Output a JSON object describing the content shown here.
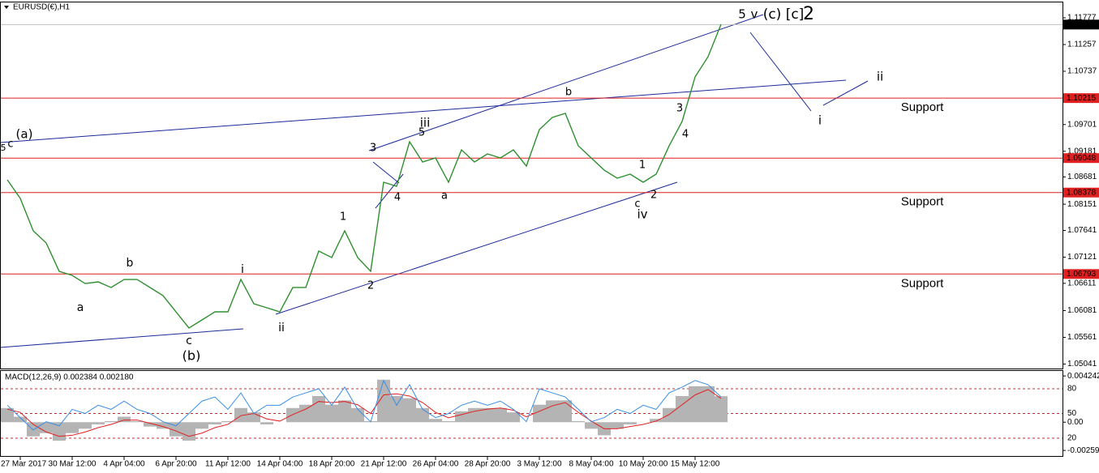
{
  "chart_data": [
    {
      "type": "line",
      "title": "EURUSD(€),H1",
      "categories": [
        null,
        "27 Mar 2017",
        null,
        null,
        null,
        "30 Mar 12:00",
        null,
        null,
        null,
        "4 Apr 04:00",
        null,
        null,
        null,
        "6 Apr 20:00",
        null,
        null,
        null,
        "11 Apr 12:00",
        null,
        null,
        null,
        "14 Apr 04:00",
        null,
        null,
        null,
        "18 Apr 20:00",
        null,
        null,
        null,
        "21 Apr 12:00",
        null,
        null,
        null,
        "26 Apr 04:00",
        null,
        null,
        null,
        "28 Apr 20:00",
        null,
        null,
        null,
        "3 May 12:00",
        null,
        null,
        null,
        "8 May 04:00",
        null,
        null,
        null,
        "10 May 20:00",
        null,
        null,
        null,
        "15 May 12:00",
        null,
        null
      ],
      "series": [
        {
          "color": "#2f8f2f",
          "values": [
            1.08625,
            1.08263,
            1.07633,
            1.07396,
            1.06845,
            1.06766,
            1.06608,
            1.0664,
            1.0653,
            1.06687,
            1.06687,
            1.0653,
            1.06372,
            1.06057,
            1.05742,
            1.05899,
            1.06057,
            1.06057,
            1.06687,
            1.06214,
            1.06136,
            1.06057,
            1.0653,
            1.0653,
            1.07239,
            1.07113,
            1.07633,
            1.07113,
            1.06845,
            1.08578,
            1.08499,
            1.09366,
            1.08972,
            1.09051,
            1.08578,
            1.09208,
            1.08972,
            1.0913,
            1.09051,
            1.09208,
            1.08893,
            1.09602,
            1.09839,
            1.09918,
            1.09287,
            1.09051,
            1.08814,
            1.08657,
            1.08736,
            1.08578,
            1.08736,
            1.09287,
            1.0976,
            1.10627,
            1.11021,
            1.11651
          ]
        }
      ],
      "ylim": [
        1.04954,
        1.12045
      ],
      "yticks": [
        1.11777,
        1.11257,
        1.10737,
        1.09701,
        1.09181,
        1.08681,
        1.08151,
        1.07641,
        1.07121,
        1.06611,
        1.06081,
        1.05561,
        1.05041
      ],
      "current_price": 1.11646,
      "hlines": [
        {
          "value": 1.10215,
          "label": "Support"
        },
        {
          "value": 1.09048
        },
        {
          "value": 1.08378,
          "label": "Support"
        },
        {
          "value": 1.06793,
          "label": "Support"
        }
      ],
      "hline_color": "#e02020",
      "annotations": [
        {
          "text": "(a)",
          "color": "#a0522d"
        },
        {
          "text": "c",
          "color": "#b0208c"
        },
        {
          "text": "5",
          "color": "#2e8b2e"
        },
        {
          "text": "a",
          "color": "#b0208c"
        },
        {
          "text": "b",
          "color": "#b0208c"
        },
        {
          "text": "c",
          "color": "#b0208c"
        },
        {
          "text": "(b)",
          "color": "#a0522d"
        },
        {
          "text": "i",
          "color": "#b0208c"
        },
        {
          "text": "ii",
          "color": "#b0208c"
        },
        {
          "text": "1",
          "color": "#2e8b2e"
        },
        {
          "text": "2",
          "color": "#2e8b2e"
        },
        {
          "text": "3",
          "color": "#2e8b2e"
        },
        {
          "text": "4",
          "color": "#2e8b2e"
        },
        {
          "text": "5",
          "color": "#2e8b2e"
        },
        {
          "text": "iii",
          "color": "#b0208c"
        },
        {
          "text": "a",
          "color": "#2e8b2e"
        },
        {
          "text": "b",
          "color": "#2e8b2e"
        },
        {
          "text": "c",
          "color": "#2e8b2e"
        },
        {
          "text": "iv",
          "color": "#b0208c"
        },
        {
          "text": "1",
          "color": "#2e8b2e"
        },
        {
          "text": "2",
          "color": "#2e8b2e"
        },
        {
          "text": "3",
          "color": "#2e8b2e"
        },
        {
          "text": "4",
          "color": "#2e8b2e"
        },
        {
          "text": "5",
          "color": "#2e8b2e"
        },
        {
          "text": "v",
          "color": "#b0208c"
        },
        {
          "text": "(c)",
          "color": "#a0522d"
        },
        {
          "text": "[c]",
          "color": "#2e8b2e"
        },
        {
          "text": "2",
          "color": "#1f3fb0"
        },
        {
          "text": "i",
          "color": "#b0208c"
        },
        {
          "text": "ii",
          "color": "#b0208c"
        }
      ]
    },
    {
      "type": "macd",
      "title": "MACD(12,26,9) 0.002384 0.002180",
      "series": [
        {
          "color": "#b4b4b4",
          "values": [
            0.0013,
            0.0005,
            -0.0013,
            -0.001,
            -0.0017,
            -0.001,
            -0.0006,
            -0.0002,
            0.0001,
            0.0005,
            0.0001,
            -0.0004,
            -0.0006,
            -0.0013,
            -0.0017,
            -0.0006,
            -0.0002,
            0.0001,
            0.0013,
            0.0009,
            -0.0002,
            0,
            0.0013,
            0.0016,
            0.0024,
            0.0016,
            0.002,
            0.0013,
            0.0001,
            0.0039,
            0.0024,
            0.0022,
            0.0013,
            0.0003,
            0.0001,
            0.001,
            0.0013,
            0.0013,
            0.0013,
            0.0009,
            0,
            0.0016,
            0.002,
            0.002,
            0.0001,
            -0.0006,
            -0.0012,
            -0.0006,
            -0.0002,
            0,
            0.0003,
            0.0013,
            0.0024,
            0.0033,
            0.0033,
            0.002384
          ]
        },
        {
          "color": "#e02020",
          "values": [
            0.0012,
            0.0009,
            -0.0002,
            -0.0009,
            -0.0013,
            -0.0012,
            -0.0009,
            -0.0005,
            -0.0002,
            0.0002,
            0.0002,
            -0.0001,
            -0.0004,
            -0.0008,
            -0.0013,
            -0.001,
            -0.0005,
            -0.0002,
            0.0006,
            0.0008,
            0.0003,
            0.0001,
            0.0007,
            0.0012,
            0.0019,
            0.0018,
            0.0019,
            0.0016,
            0.0008,
            0.0025,
            0.0026,
            0.0024,
            0.0018,
            0.0009,
            0.0004,
            0.0007,
            0.001,
            0.0012,
            0.0013,
            0.0011,
            0.0005,
            0.001,
            0.0015,
            0.0018,
            0.0009,
            0.0001,
            -0.0006,
            -0.0006,
            -0.0004,
            -0.0002,
            0.0001,
            0.0007,
            0.0016,
            0.0025,
            0.003,
            0.00218
          ]
        },
        {
          "color": "#3a8ee6",
          "axis": "y2",
          "values": [
            60,
            45,
            30,
            40,
            35,
            55,
            50,
            60,
            55,
            65,
            55,
            50,
            40,
            35,
            50,
            65,
            70,
            55,
            75,
            50,
            60,
            60,
            70,
            75,
            80,
            60,
            82,
            55,
            40,
            90,
            60,
            85,
            55,
            45,
            50,
            60,
            65,
            60,
            65,
            55,
            40,
            80,
            75,
            70,
            55,
            40,
            45,
            55,
            50,
            60,
            55,
            75,
            82,
            90,
            85,
            70
          ]
        }
      ],
      "ylim": [
        -0.0031,
        0.0047
      ],
      "yticks": [
        0.004242,
        {
          "value": 0,
          "label": "0.00"
        },
        -0.00259
      ],
      "y2lim": [
        -1.6,
        101.6
      ],
      "y2ticks": [
        80,
        50,
        20
      ],
      "level_color": "#e02020"
    }
  ]
}
